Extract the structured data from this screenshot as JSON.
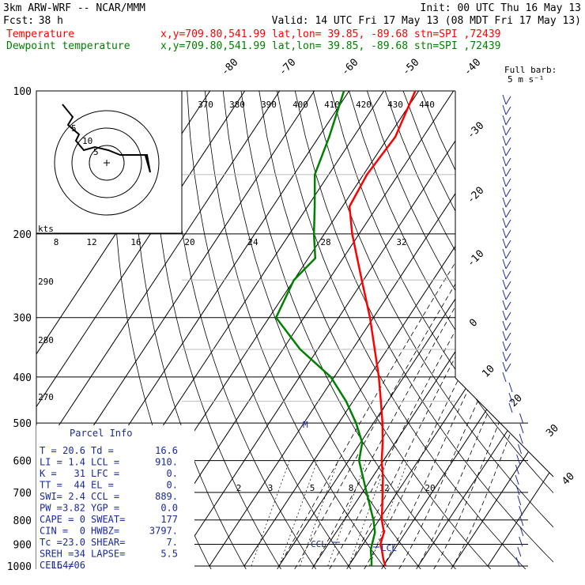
{
  "header": {
    "model": "3km ARW-WRF -- NCAR/MMM",
    "init": "Init: 00 UTC Thu 16 May 13",
    "fcst_label": "Fcst:",
    "fcst_value": "38 h",
    "valid": "Valid: 14 UTC Fri 17 May 13 (08 MDT Fri 17 May 13)",
    "temperature_label": "Temperature",
    "dewpoint_label": "Dewpoint temperature",
    "location_line": "x,y=709.80,541.99   lat,lon= 39.85, -89.68  stn=SPI ,72439",
    "colors": {
      "temperature": "#ff0000",
      "dewpoint": "#008000",
      "panel": "#1a2a9a"
    }
  },
  "chart_data": {
    "type": "line",
    "subtype": "skew-t log-p sounding",
    "y_axis": {
      "scale": "log",
      "unit": "hPa",
      "range": [
        1000,
        100
      ],
      "ticks": [
        "100",
        "200",
        "300",
        "400",
        "500",
        "600",
        "700",
        "800",
        "900",
        "1000"
      ]
    },
    "isotherm_labels": [
      "-80",
      "-70",
      "-60",
      "-50",
      "-40",
      "-30",
      "-20",
      "-10",
      "0",
      "10",
      "20",
      "30",
      "40"
    ],
    "theta_e_labels": [
      "370",
      "380",
      "390",
      "400",
      "410",
      "420",
      "430",
      "440"
    ],
    "mixing_ratio_labels": [
      "2",
      "3",
      "5",
      "8",
      "12",
      "20"
    ],
    "theta_labels": [
      "290",
      "280",
      "270"
    ],
    "series": [
      {
        "name": "Temperature",
        "points": [
          [
            1000,
            20.6
          ],
          [
            970,
            18.8
          ],
          [
            925,
            16.5
          ],
          [
            900,
            15.0
          ],
          [
            850,
            13.8
          ],
          [
            800,
            10.8
          ],
          [
            750,
            8.4
          ],
          [
            700,
            5.8
          ],
          [
            650,
            3.0
          ],
          [
            600,
            -0.5
          ],
          [
            550,
            -3.6
          ],
          [
            500,
            -7.4
          ],
          [
            450,
            -12.0
          ],
          [
            400,
            -17.2
          ],
          [
            350,
            -23.6
          ],
          [
            300,
            -31.0
          ],
          [
            250,
            -40.5
          ],
          [
            200,
            -52.0
          ],
          [
            175,
            -58.0
          ],
          [
            150,
            -59.0
          ],
          [
            125,
            -58.0
          ],
          [
            100,
            -61.0
          ]
        ]
      },
      {
        "name": "Dewpoint temperature",
        "points": [
          [
            1000,
            16.6
          ],
          [
            975,
            15.6
          ],
          [
            925,
            13.3
          ],
          [
            900,
            12.6
          ],
          [
            850,
            11.2
          ],
          [
            800,
            8.4
          ],
          [
            700,
            1.2
          ],
          [
            600,
            -7.0
          ],
          [
            550,
            -9.5
          ],
          [
            500,
            -15.0
          ],
          [
            450,
            -22.0
          ],
          [
            400,
            -31.0
          ],
          [
            350,
            -45.0
          ],
          [
            300,
            -58.0
          ],
          [
            250,
            -60.0
          ],
          [
            225,
            -58.0
          ],
          [
            200,
            -63.0
          ],
          [
            175,
            -68.0
          ],
          [
            150,
            -74.0
          ],
          [
            125,
            -77.0
          ],
          [
            100,
            -81.5
          ]
        ]
      }
    ],
    "annotations": [
      "CCL",
      "LCL",
      "M"
    ],
    "wind_barb_title": "Full barb:",
    "wind_barb_sub": "5 m s⁻¹",
    "hodograph": {
      "units": "kts",
      "ring_labels": [
        "8",
        "12",
        "16",
        "20",
        "24",
        "28",
        "32"
      ],
      "trace_labels": [
        "5",
        "10",
        "5"
      ]
    }
  },
  "parcel_info": {
    "title": "Parcel Info",
    "rows": [
      [
        "T  =",
        "20.6",
        "Td =",
        "16.6"
      ],
      [
        "LI =",
        "1.4",
        "LCL =",
        "910."
      ],
      [
        "K  =",
        "31",
        "LFC =",
        "0."
      ],
      [
        "TT =",
        "44",
        "EL  =",
        "0."
      ],
      [
        "SWI=",
        "2.4",
        "CCL =",
        "889."
      ],
      [
        "PW =",
        "3.82",
        "YGP =",
        "0.0"
      ],
      [
        "CAPE =",
        "0",
        "SWEAT=",
        "177"
      ],
      [
        "CIN =",
        "0",
        "HWBZ=",
        "3797."
      ],
      [
        "Tc =",
        "23.0",
        "SHEAR=",
        "7."
      ],
      [
        "SREH =",
        "34",
        "LAPSE=",
        "5.5"
      ],
      [
        "CELL =",
        "164/06",
        "",
        ""
      ]
    ]
  }
}
